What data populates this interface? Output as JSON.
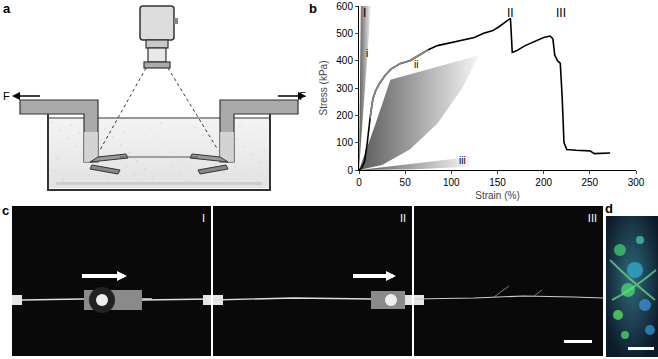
{
  "panel_labels": [
    "a",
    "b",
    "c",
    "d"
  ],
  "diagram": {
    "forces": [
      "F",
      "F"
    ]
  },
  "chart_data": {
    "type": "line",
    "x_label": "Strain (%)",
    "y_label": "Stress (kPa)",
    "xlim": [
      0,
      300
    ],
    "xticks": [
      0,
      50,
      100,
      150,
      200,
      250,
      300
    ],
    "ylim": [
      0,
      600
    ],
    "yticks": [
      0,
      100,
      200,
      300,
      400,
      500,
      600
    ],
    "grid": false,
    "series": [
      {
        "color": "#000000",
        "x": [
          0,
          3,
          6,
          9,
          12,
          15,
          18,
          22,
          28,
          35,
          45,
          55,
          65,
          75,
          85,
          95,
          105,
          115,
          125,
          135,
          145,
          152,
          158,
          162,
          164,
          166,
          170,
          180,
          190,
          200,
          207,
          210,
          212,
          215,
          218,
          220,
          222,
          225,
          235,
          250,
          255,
          265,
          272
        ],
        "values": [
          0,
          8,
          30,
          100,
          190,
          260,
          290,
          315,
          345,
          370,
          390,
          400,
          420,
          440,
          455,
          462,
          470,
          478,
          485,
          500,
          510,
          525,
          540,
          550,
          555,
          430,
          435,
          455,
          470,
          485,
          490,
          480,
          420,
          400,
          390,
          270,
          100,
          75,
          72,
          70,
          60,
          60,
          62
        ]
      },
      {
        "color": "#888888",
        "x": [
          12,
          15,
          18,
          22,
          28,
          35,
          45,
          55,
          65,
          75
        ],
        "values": [
          190,
          260,
          290,
          315,
          345,
          370,
          390,
          400,
          420,
          440
        ]
      }
    ],
    "regions": [
      {
        "label": "i",
        "points": [
          [
            0,
            0
          ],
          [
            2,
            600
          ],
          [
            13,
            600
          ]
        ]
      },
      {
        "label": "ii",
        "points": [
          [
            0,
            0
          ],
          [
            18,
            170
          ],
          [
            34,
            330
          ],
          [
            130,
            420
          ],
          [
            112,
            300
          ],
          [
            85,
            170
          ],
          [
            55,
            75
          ],
          [
            25,
            18
          ]
        ]
      },
      {
        "label": "iii",
        "points": [
          [
            0,
            0
          ],
          [
            120,
            48
          ],
          [
            120,
            12
          ],
          [
            60,
            3
          ]
        ]
      }
    ],
    "annotations": [
      {
        "text": "I",
        "x": 6,
        "y": 575
      },
      {
        "text": "II",
        "x": 164,
        "y": 575
      },
      {
        "text": "III",
        "x": 219,
        "y": 575
      },
      {
        "text": "i",
        "x": 9,
        "y": 425
      },
      {
        "text": "ii",
        "x": 62,
        "y": 385
      },
      {
        "text": "iii",
        "x": 112,
        "y": 35
      }
    ]
  },
  "micrographs": {
    "frames": [
      "I",
      "II",
      "III"
    ]
  }
}
